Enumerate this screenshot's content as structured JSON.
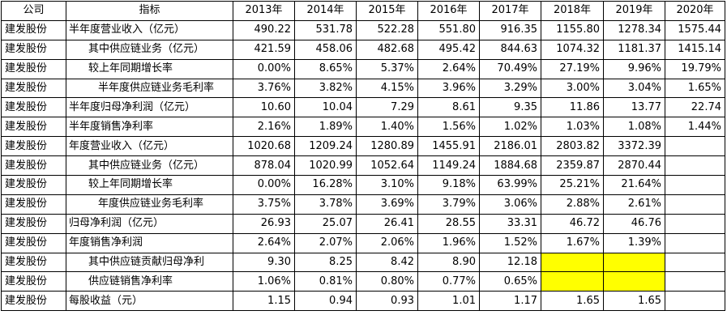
{
  "table": {
    "headers": [
      "公司",
      "指标",
      "2013年",
      "2014年",
      "2015年",
      "2016年",
      "2017年",
      "2018年",
      "2019年",
      "2020年"
    ],
    "rows": [
      {
        "company": "建发股份",
        "label": "半年度营业收入（亿元）",
        "indent": 0,
        "values": [
          "490.22",
          "531.78",
          "522.28",
          "551.80",
          "916.35",
          "1155.80",
          "1278.34",
          "1575.44"
        ]
      },
      {
        "company": "建发股份",
        "label": "其中供应链业务（亿元）",
        "indent": 1,
        "values": [
          "421.59",
          "458.06",
          "482.68",
          "495.42",
          "844.63",
          "1074.32",
          "1181.37",
          "1415.14"
        ]
      },
      {
        "company": "建发股份",
        "label": "较上年同期增长率",
        "indent": 2,
        "values": [
          "0.00%",
          "8.65%",
          "5.37%",
          "2.64%",
          "70.49%",
          "27.19%",
          "9.96%",
          "19.79%"
        ]
      },
      {
        "company": "建发股份",
        "label": "半年度供应链业务毛利率",
        "indent": 3,
        "values": [
          "3.76%",
          "3.82%",
          "4.15%",
          "3.96%",
          "3.29%",
          "3.00%",
          "3.04%",
          "1.65%"
        ]
      },
      {
        "company": "建发股份",
        "label": "半年度归母净利润（亿元）",
        "indent": 0,
        "values": [
          "10.60",
          "10.04",
          "7.29",
          "8.61",
          "9.35",
          "11.86",
          "13.77",
          "22.74"
        ]
      },
      {
        "company": "建发股份",
        "label": "半年度销售净利率",
        "indent": 0,
        "values": [
          "2.16%",
          "1.89%",
          "1.40%",
          "1.56%",
          "1.02%",
          "1.03%",
          "1.08%",
          "1.44%"
        ]
      },
      {
        "company": "建发股份",
        "label": "年度营业收入（亿元）",
        "indent": 0,
        "values": [
          "1020.68",
          "1209.24",
          "1280.89",
          "1455.91",
          "2186.01",
          "2803.82",
          "3372.39",
          ""
        ]
      },
      {
        "company": "建发股份",
        "label": "其中供应链业务（亿元）",
        "indent": 1,
        "values": [
          "878.04",
          "1020.99",
          "1052.64",
          "1149.24",
          "1884.68",
          "2359.87",
          "2870.44",
          ""
        ]
      },
      {
        "company": "建发股份",
        "label": "较上年同期增长率",
        "indent": 2,
        "values": [
          "0.00%",
          "16.28%",
          "3.10%",
          "9.18%",
          "63.99%",
          "25.21%",
          "21.64%",
          ""
        ]
      },
      {
        "company": "建发股份",
        "label": "年度供应链业务毛利率",
        "indent": 3,
        "values": [
          "3.75%",
          "3.78%",
          "3.69%",
          "3.79%",
          "3.06%",
          "2.88%",
          "2.61%",
          ""
        ]
      },
      {
        "company": "建发股份",
        "label": "归母净利润（亿元）",
        "indent": 0,
        "values": [
          "26.93",
          "25.07",
          "26.41",
          "28.55",
          "33.31",
          "46.72",
          "46.76",
          ""
        ]
      },
      {
        "company": "建发股份",
        "label": "年度销售净利润",
        "indent": 0,
        "values": [
          "2.64%",
          "2.07%",
          "2.06%",
          "1.96%",
          "1.52%",
          "1.67%",
          "1.39%",
          ""
        ]
      },
      {
        "company": "建发股份",
        "label": "其中供应链贡献归母净利",
        "indent": 1,
        "values": [
          "9.30",
          "8.25",
          "8.42",
          "8.90",
          "12.18",
          "",
          "",
          ""
        ],
        "highlight": [
          5,
          6
        ]
      },
      {
        "company": "建发股份",
        "label": "供应链销售净利率",
        "indent": 1,
        "values": [
          "1.06%",
          "0.81%",
          "0.80%",
          "0.77%",
          "0.65%",
          "",
          "",
          ""
        ],
        "highlight": [
          5,
          6
        ]
      },
      {
        "company": "建发股份",
        "label": "每股收益（元）",
        "indent": 0,
        "values": [
          "1.15",
          "0.94",
          "0.93",
          "1.01",
          "1.17",
          "1.65",
          "1.65",
          ""
        ]
      }
    ]
  }
}
